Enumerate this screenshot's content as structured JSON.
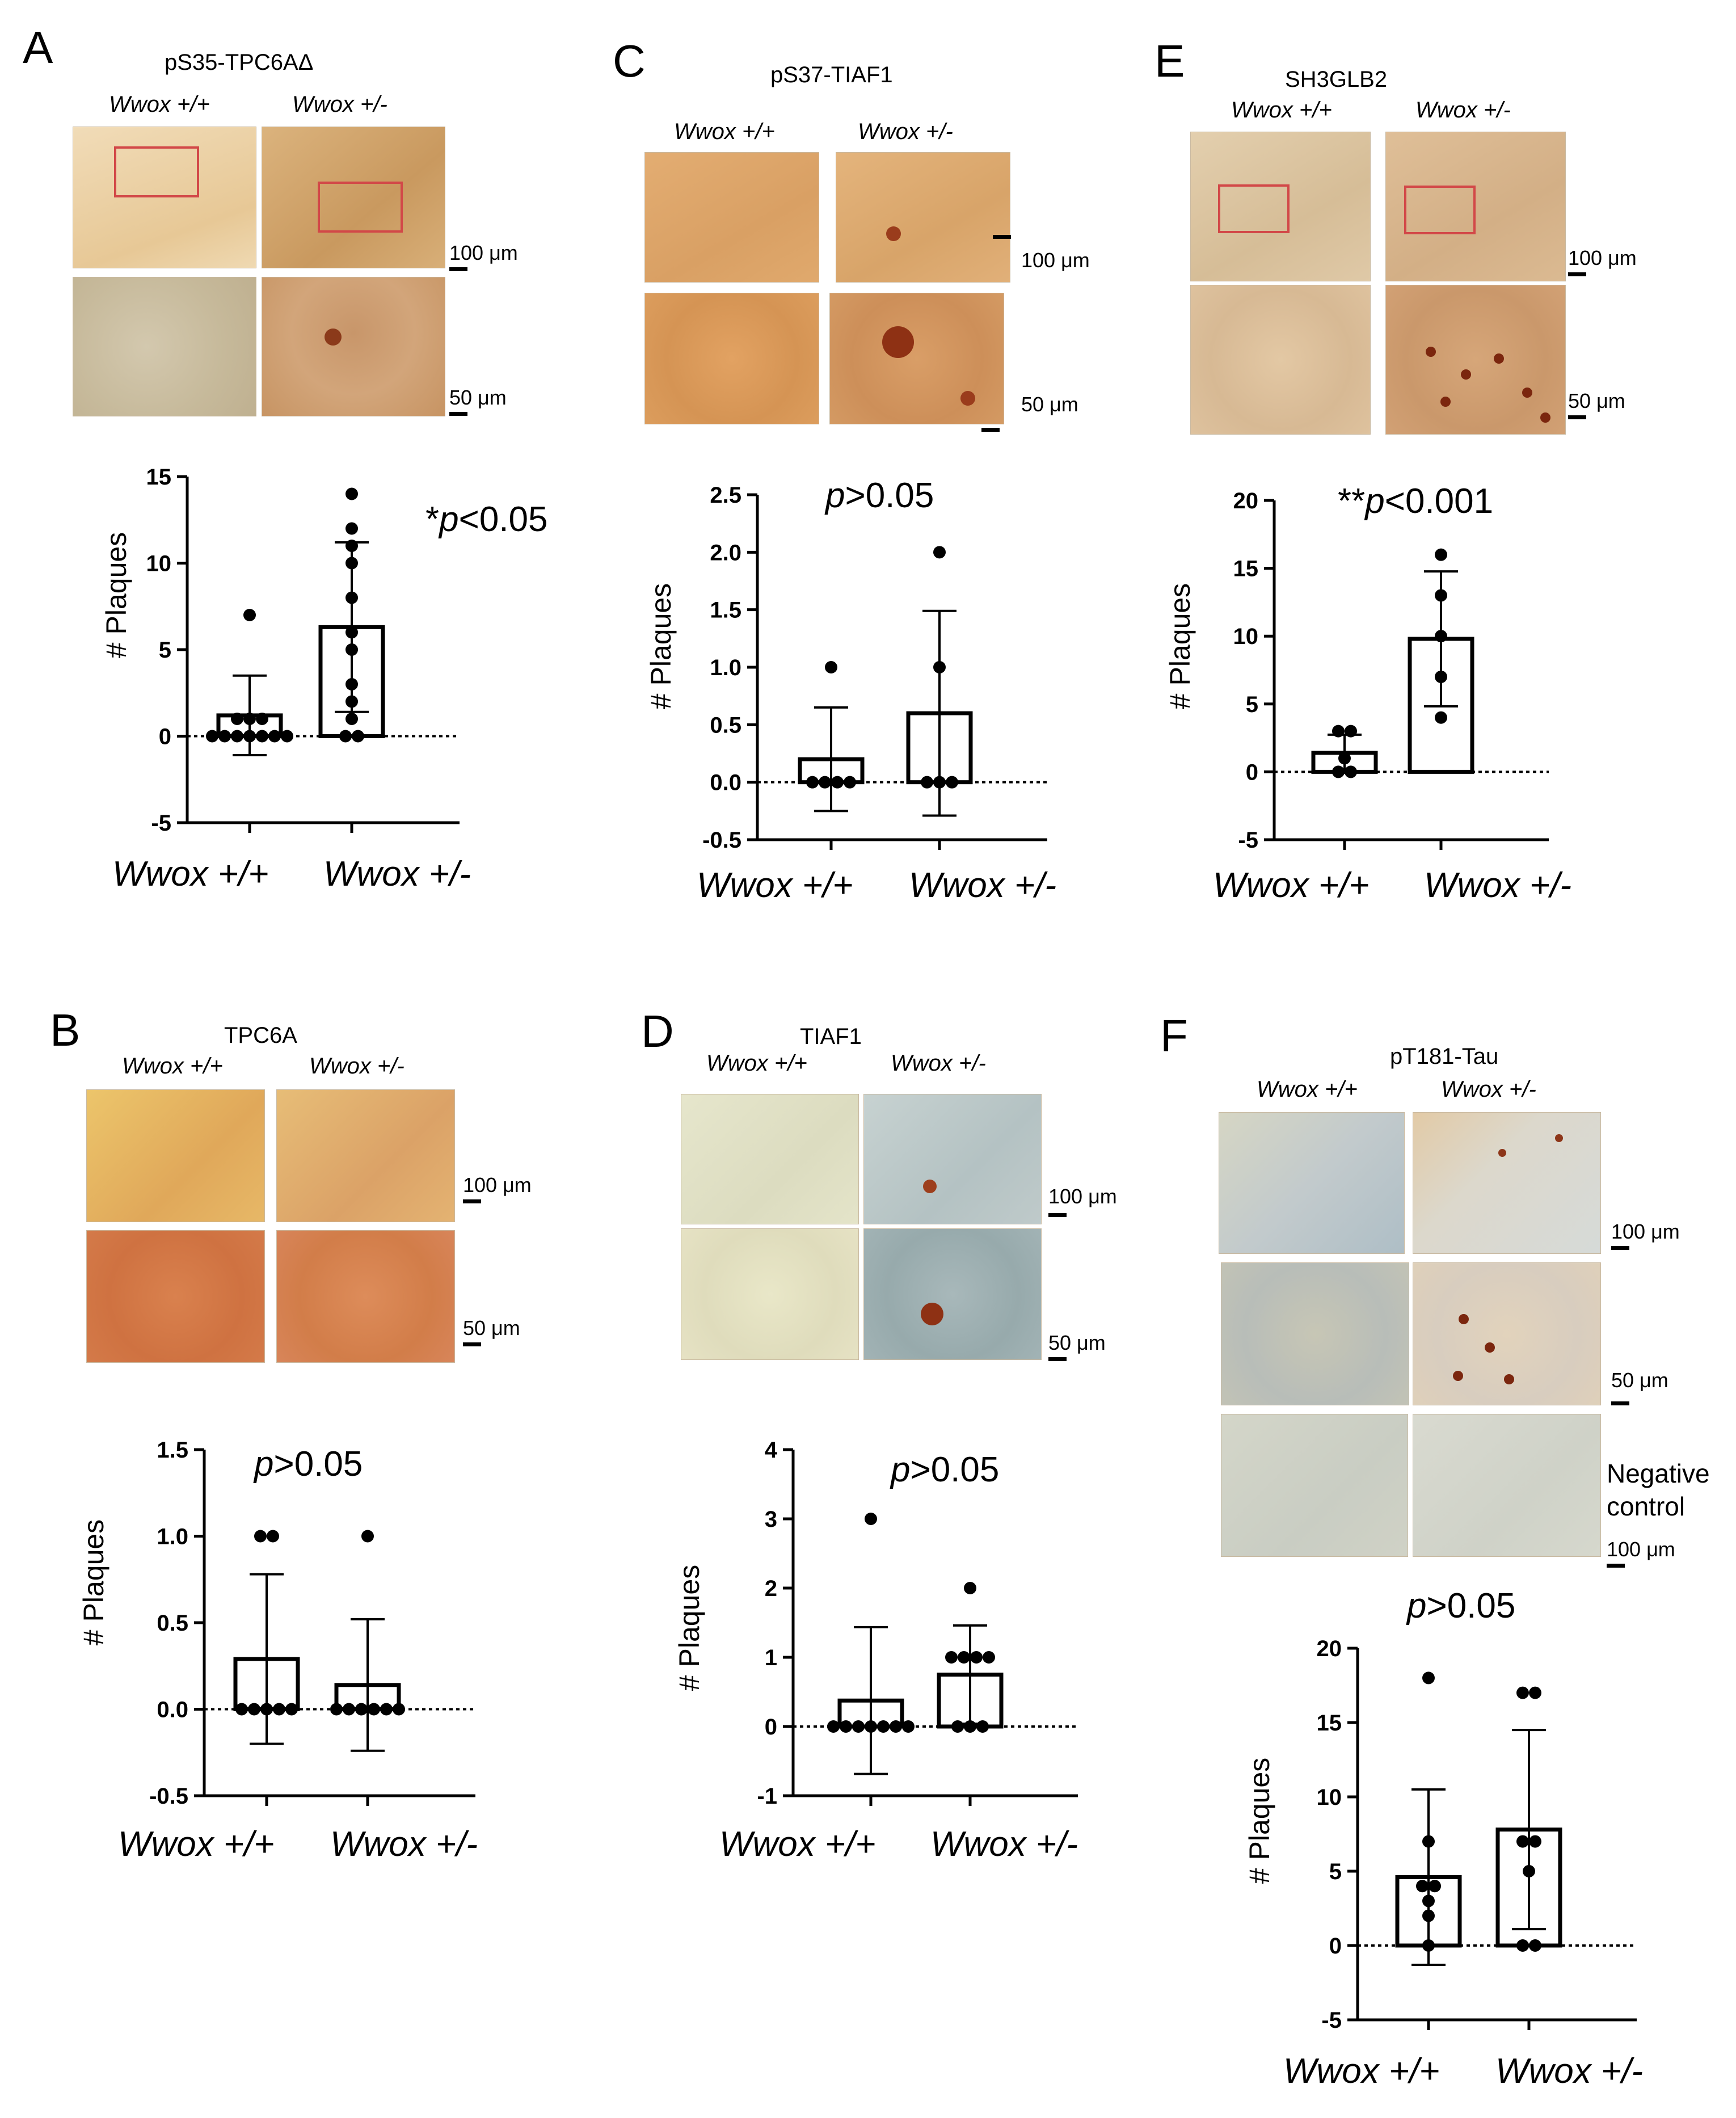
{
  "panels": {
    "A": {
      "letter": "A",
      "title": "pS35-TPC6AΔ",
      "geno_wt": "Wwox +/+",
      "geno_het": "Wwox +/-",
      "scale_top": "100 μm",
      "scale_bottom": "50 μm",
      "stat_prefix": "*",
      "stat_p": "p",
      "stat_rest": "<0.05",
      "ylabel": "# Plaques",
      "x_wt": "Wwox +/+",
      "x_het": "Wwox +/-"
    },
    "B": {
      "letter": "B",
      "title": "TPC6A",
      "geno_wt": "Wwox +/+",
      "geno_het": "Wwox +/-",
      "scale_top": "100 μm",
      "scale_bottom": "50 μm",
      "stat_prefix": "",
      "stat_p": "p",
      "stat_rest": ">0.05",
      "ylabel": "# Plaques",
      "x_wt": "Wwox +/+",
      "x_het": "Wwox +/-"
    },
    "C": {
      "letter": "C",
      "title": "pS37-TIAF1",
      "geno_wt": "Wwox +/+",
      "geno_het": "Wwox +/-",
      "scale_top": "100 μm",
      "scale_bottom": "50 μm",
      "stat_prefix": "",
      "stat_p": "p",
      "stat_rest": ">0.05",
      "ylabel": "# Plaques",
      "x_wt": "Wwox +/+",
      "x_het": "Wwox +/-"
    },
    "D": {
      "letter": "D",
      "title": "TIAF1",
      "geno_wt": "Wwox +/+",
      "geno_het": "Wwox +/-",
      "scale_top": "100 μm",
      "scale_bottom": "50 μm",
      "stat_prefix": "",
      "stat_p": "p",
      "stat_rest": ">0.05",
      "ylabel": "# Plaques",
      "x_wt": "Wwox +/+",
      "x_het": "Wwox +/-"
    },
    "E": {
      "letter": "E",
      "title": "SH3GLB2",
      "geno_wt": "Wwox +/+",
      "geno_het": "Wwox +/-",
      "scale_top": "100 μm",
      "scale_bottom": "50 μm",
      "stat_prefix": "**",
      "stat_p": "p",
      "stat_rest": "<0.001",
      "ylabel": "# Plaques",
      "x_wt": "Wwox +/+",
      "x_het": "Wwox +/-"
    },
    "F": {
      "letter": "F",
      "title": "pT181-Tau",
      "geno_wt": "Wwox +/+",
      "geno_het": "Wwox +/-",
      "scale_top": "100 μm",
      "scale_bottom": "50 μm",
      "scale_neg": "100 μm",
      "negative_control": "Negative control",
      "stat_prefix": "",
      "stat_p": "p",
      "stat_rest": ">0.05",
      "ylabel": "# Plaques",
      "x_wt": "Wwox +/+",
      "x_het": "Wwox +/-"
    }
  },
  "colors": {
    "stain_brown": "#c98a4a",
    "stain_blue": "#aeb8b6",
    "roi_red": "#d24848"
  },
  "chart_data": [
    {
      "panel": "A",
      "type": "bar",
      "categories": [
        "Wwox +/+",
        "Wwox +/-"
      ],
      "ylabel": "# Plaques",
      "ylim": [
        -5,
        15
      ],
      "yticks": [
        -5,
        0,
        5,
        10,
        15
      ],
      "series": [
        {
          "values": [
            1.2,
            6.3
          ],
          "sd": [
            2.3,
            4.9
          ],
          "points": [
            [
              0,
              0,
              0,
              0,
              0,
              0,
              0,
              1,
              1,
              1,
              7
            ],
            [
              0,
              0,
              1,
              2,
              3,
              5,
              6,
              8,
              10,
              11,
              12,
              14
            ]
          ]
        }
      ]
    },
    {
      "panel": "B",
      "type": "bar",
      "categories": [
        "Wwox +/+",
        "Wwox +/-"
      ],
      "ylabel": "# Plaques",
      "ylim": [
        -0.5,
        1.5
      ],
      "yticks": [
        -0.5,
        0.0,
        0.5,
        1.0,
        1.5
      ],
      "series": [
        {
          "values": [
            0.29,
            0.14
          ],
          "sd": [
            0.49,
            0.38
          ],
          "points": [
            [
              0,
              0,
              0,
              0,
              0,
              1,
              1
            ],
            [
              0,
              0,
              0,
              0,
              0,
              0,
              1
            ]
          ]
        }
      ]
    },
    {
      "panel": "C",
      "type": "bar",
      "categories": [
        "Wwox +/+",
        "Wwox +/-"
      ],
      "ylabel": "# Plaques",
      "ylim": [
        -0.5,
        2.5
      ],
      "yticks": [
        -0.5,
        0.0,
        0.5,
        1.0,
        1.5,
        2.0,
        2.5
      ],
      "series": [
        {
          "values": [
            0.2,
            0.6
          ],
          "sd": [
            0.45,
            0.89
          ],
          "points": [
            [
              0,
              0,
              0,
              0,
              1
            ],
            [
              0,
              0,
              0,
              1,
              2
            ]
          ]
        }
      ]
    },
    {
      "panel": "D",
      "type": "bar",
      "categories": [
        "Wwox +/+",
        "Wwox +/-"
      ],
      "ylabel": "# Plaques",
      "ylim": [
        -1,
        4
      ],
      "yticks": [
        -1,
        0,
        1,
        2,
        3,
        4
      ],
      "series": [
        {
          "values": [
            0.375,
            0.75
          ],
          "sd": [
            1.06,
            0.71
          ],
          "points": [
            [
              0,
              0,
              0,
              0,
              0,
              0,
              0,
              3
            ],
            [
              0,
              0,
              0,
              1,
              1,
              1,
              1,
              2
            ]
          ]
        }
      ]
    },
    {
      "panel": "E",
      "type": "bar",
      "categories": [
        "Wwox +/+",
        "Wwox +/-"
      ],
      "ylabel": "# Plaques",
      "ylim": [
        -5,
        20
      ],
      "yticks": [
        -5,
        0,
        5,
        10,
        15,
        20
      ],
      "series": [
        {
          "values": [
            1.4,
            9.8
          ],
          "sd": [
            1.34,
            4.97
          ],
          "points": [
            [
              0,
              0,
              1,
              3,
              3
            ],
            [
              4,
              7,
              10,
              13,
              16
            ]
          ]
        }
      ]
    },
    {
      "panel": "F",
      "type": "bar",
      "categories": [
        "Wwox +/+",
        "Wwox +/-"
      ],
      "ylabel": "# Plaques",
      "ylim": [
        -5,
        20
      ],
      "yticks": [
        -5,
        0,
        5,
        10,
        15,
        20
      ],
      "series": [
        {
          "values": [
            4.6,
            7.8
          ],
          "sd": [
            5.9,
            6.7
          ],
          "points": [
            [
              0,
              2,
              3,
              4,
              4,
              7,
              18
            ],
            [
              0,
              0,
              5,
              7,
              7,
              17,
              17
            ]
          ]
        }
      ]
    }
  ]
}
